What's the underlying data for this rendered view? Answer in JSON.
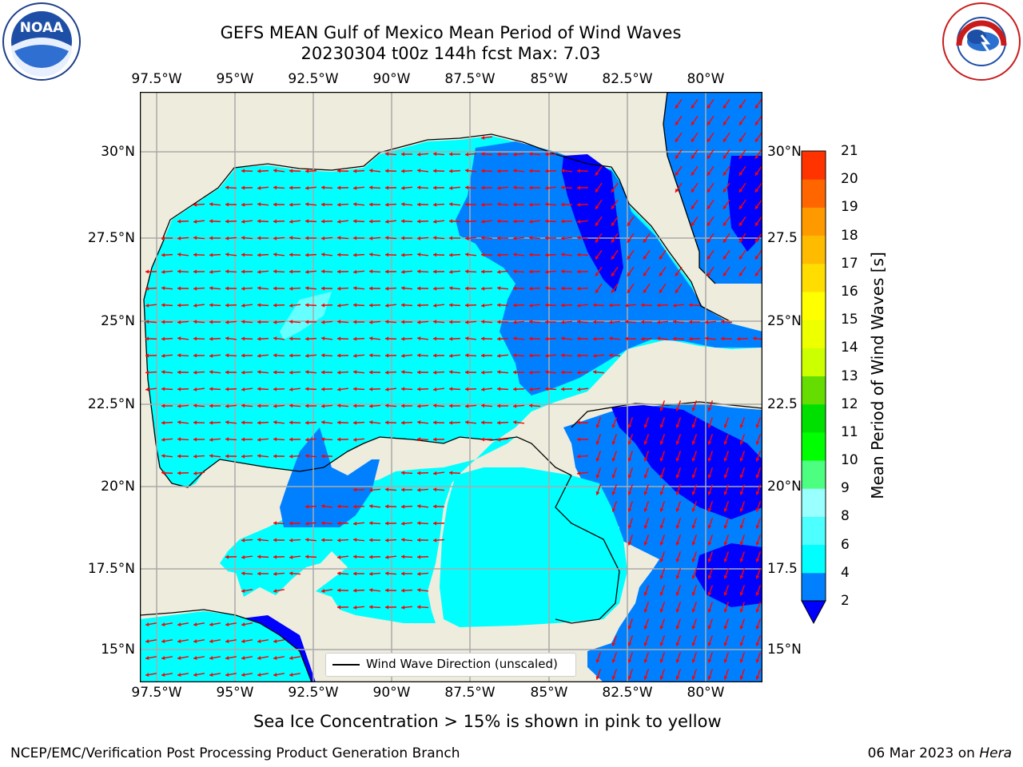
{
  "title_line1": "GEFS MEAN Gulf of Mexico Mean Period of Wind Waves",
  "title_line2": "20230304 t00z 144h fcst   Max: 7.03",
  "lon_ticks": [
    "97.5°W",
    "95°W",
    "92.5°W",
    "90°W",
    "87.5°W",
    "85°W",
    "82.5°W",
    "80°W"
  ],
  "lat_ticks_left": [
    "30°N",
    "27.5°N",
    "25°N",
    "22.5°N",
    "20°N",
    "17.5°N",
    "15°N"
  ],
  "lat_ticks_right": [
    "30°N",
    "27.5",
    "25°N",
    "22.5",
    "20°N",
    "17.5",
    "15°N"
  ],
  "legend_label": "Wind Wave Direction (unscaled)",
  "colorbar": {
    "label": "Mean Period of Wind Waves [s]",
    "ticks": [
      "2",
      "4",
      "6",
      "8",
      "9",
      "10",
      "11",
      "12",
      "13",
      "14",
      "15",
      "16",
      "17",
      "18",
      "19",
      "20",
      "21"
    ],
    "colors": [
      "#0080ff",
      "#00ffff",
      "#4dffff",
      "#99ffff",
      "#4dff80",
      "#00ff00",
      "#00e000",
      "#66dd00",
      "#ccff00",
      "#eeff00",
      "#ffff00",
      "#ffdd00",
      "#ffbb00",
      "#ff9900",
      "#ff6600",
      "#ff3300",
      "#ff0000"
    ],
    "extend_color": "#0000ff"
  },
  "map_colors": {
    "land": "#eeecdc",
    "period_2_4": "#0080ff",
    "period_4_6": "#00ffff",
    "period_6_8": "#66ffff",
    "period_below_2": "#0000ff",
    "arrow": "#ff0000"
  },
  "sea_ice_note": "Sea Ice Concentration > 15% is shown in pink to yellow",
  "footer_left": "NCEP/EMC/Verification Post Processing Product Generation Branch",
  "footer_date": "06 Mar 2023 on ",
  "footer_machine": "Hera",
  "logo_left": {
    "text": "NOAA"
  },
  "logo_right": {
    "ring_text": "NATIONAL WEATHER SERVICE"
  }
}
